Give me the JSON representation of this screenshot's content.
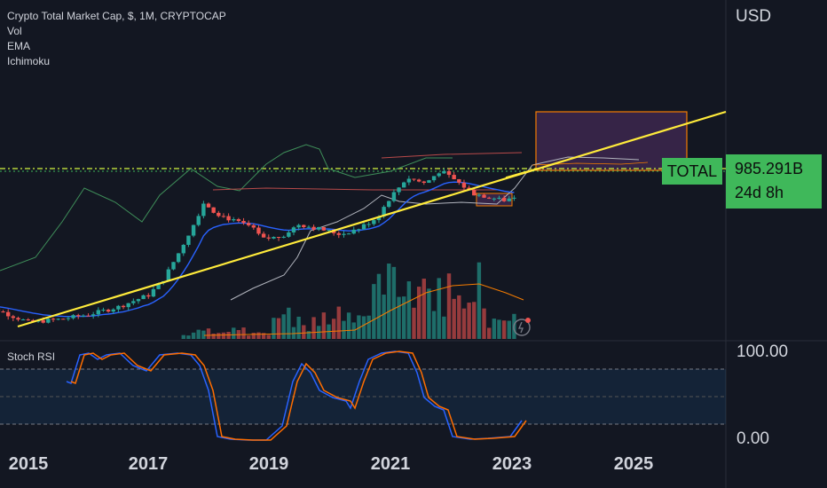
{
  "legend": {
    "title": "Crypto Total Market Cap, $, 1M, CRYPTOCAP",
    "indicators": [
      "Vol",
      "EMA",
      "Ichimoku"
    ]
  },
  "axis": {
    "currency": "USD"
  },
  "price_tag": {
    "ticker": "TOTAL",
    "value": "985.291B",
    "countdown": "24d 8h"
  },
  "rsi": {
    "title": "Stoch RSI",
    "upper_label": "100.00",
    "lower_label": "0.00"
  },
  "colors": {
    "background": "#131722",
    "up": "#26a69a",
    "down": "#ef5350",
    "trendline": "#ffeb3b",
    "ema": "#2962ff",
    "price_tag": "#3fb85a",
    "rsi_k": "#2962ff",
    "rsi_d": "#ff6d00"
  },
  "chart_data": {
    "type": "candlestick",
    "x_ticks": [
      "2015",
      "2017",
      "2019",
      "2021",
      "2023",
      "2025"
    ],
    "price_series": [
      {
        "t": 2014.0,
        "v": 0.18
      },
      {
        "t": 2014.5,
        "v": 0.14
      },
      {
        "t": 2015.0,
        "v": 0.09
      },
      {
        "t": 2015.5,
        "v": 0.1
      },
      {
        "t": 2016.0,
        "v": 0.12
      },
      {
        "t": 2016.5,
        "v": 0.16
      },
      {
        "t": 2017.0,
        "v": 0.25
      },
      {
        "t": 2017.25,
        "v": 0.45
      },
      {
        "t": 2017.5,
        "v": 1.2
      },
      {
        "t": 2017.75,
        "v": 3.5
      },
      {
        "t": 2017.92,
        "v": 8.0
      },
      {
        "t": 2018.1,
        "v": 5.5
      },
      {
        "t": 2018.4,
        "v": 4.0
      },
      {
        "t": 2018.7,
        "v": 3.2
      },
      {
        "t": 2018.9,
        "v": 2.0
      },
      {
        "t": 2019.2,
        "v": 2.2
      },
      {
        "t": 2019.5,
        "v": 3.5
      },
      {
        "t": 2019.8,
        "v": 3.0
      },
      {
        "t": 2020.2,
        "v": 2.4
      },
      {
        "t": 2020.5,
        "v": 3.0
      },
      {
        "t": 2020.8,
        "v": 4.5
      },
      {
        "t": 2021.0,
        "v": 9.0
      },
      {
        "t": 2021.3,
        "v": 20.0
      },
      {
        "t": 2021.6,
        "v": 16.0
      },
      {
        "t": 2021.85,
        "v": 26.0
      },
      {
        "t": 2022.1,
        "v": 18.0
      },
      {
        "t": 2022.4,
        "v": 11.0
      },
      {
        "t": 2022.7,
        "v": 9.5
      },
      {
        "t": 2022.9,
        "v": 8.5
      },
      {
        "t": 2023.1,
        "v": 10.0
      }
    ],
    "current_value": "985.291B"
  }
}
